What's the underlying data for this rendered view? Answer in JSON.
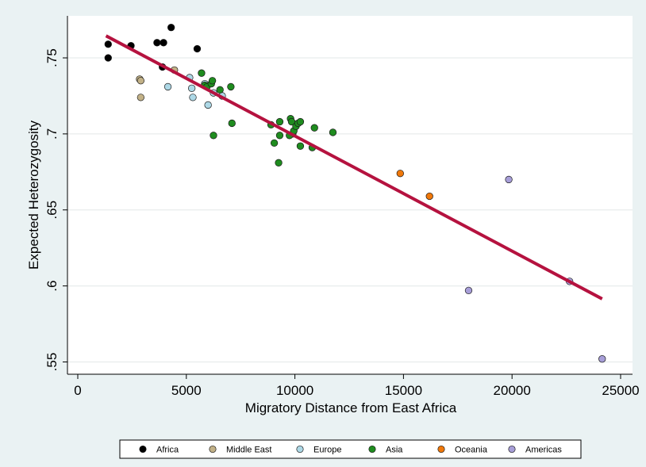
{
  "chart_data": {
    "type": "scatter",
    "xlabel": "Migratory Distance from East Africa",
    "ylabel": "Expected Heterozygosity",
    "xlim": [
      0,
      25000
    ],
    "ylim": [
      0.55,
      0.775
    ],
    "x_ticks": [
      0,
      5000,
      10000,
      15000,
      20000,
      25000
    ],
    "x_tick_labels": [
      "0",
      "5000",
      "10000",
      "15000",
      "20000",
      "25000"
    ],
    "y_ticks": [
      0.55,
      0.6,
      0.65,
      0.7,
      0.75
    ],
    "y_tick_labels": [
      ".55",
      ".6",
      ".65",
      ".7",
      ".75"
    ],
    "grid": true,
    "legend_position": "bottom",
    "fit_line": {
      "x": [
        1300,
        24150
      ],
      "y": [
        0.7645,
        0.5915
      ],
      "color": "#b5123f"
    },
    "series": [
      {
        "name": "Africa",
        "color": "#000000",
        "points": [
          [
            1400,
            0.759
          ],
          [
            1400,
            0.75
          ],
          [
            2450,
            0.758
          ],
          [
            3650,
            0.76
          ],
          [
            3950,
            0.76
          ],
          [
            4300,
            0.77
          ],
          [
            5500,
            0.756
          ],
          [
            3900,
            0.744
          ]
        ]
      },
      {
        "name": "Middle East",
        "color": "#c2b187",
        "points": [
          [
            2850,
            0.736
          ],
          [
            2900,
            0.735
          ],
          [
            2900,
            0.724
          ],
          [
            4450,
            0.742
          ]
        ]
      },
      {
        "name": "Europe",
        "color": "#add8e6",
        "points": [
          [
            4150,
            0.731
          ],
          [
            5150,
            0.737
          ],
          [
            5250,
            0.73
          ],
          [
            5300,
            0.724
          ],
          [
            6000,
            0.719
          ],
          [
            6250,
            0.727
          ],
          [
            6650,
            0.725
          ],
          [
            5850,
            0.733
          ]
        ]
      },
      {
        "name": "Asia",
        "color": "#1f8c1f",
        "points": [
          [
            5700,
            0.74
          ],
          [
            5850,
            0.732
          ],
          [
            5950,
            0.731
          ],
          [
            6150,
            0.733
          ],
          [
            6200,
            0.735
          ],
          [
            6550,
            0.729
          ],
          [
            7050,
            0.731
          ],
          [
            7100,
            0.707
          ],
          [
            6250,
            0.699
          ],
          [
            8900,
            0.706
          ],
          [
            9050,
            0.694
          ],
          [
            9250,
            0.681
          ],
          [
            9300,
            0.708
          ],
          [
            9300,
            0.699
          ],
          [
            9800,
            0.71
          ],
          [
            9850,
            0.708
          ],
          [
            9900,
            0.7
          ],
          [
            9950,
            0.702
          ],
          [
            10050,
            0.705
          ],
          [
            10150,
            0.707
          ],
          [
            10250,
            0.708
          ],
          [
            10250,
            0.692
          ],
          [
            10800,
            0.691
          ],
          [
            10900,
            0.704
          ],
          [
            11750,
            0.701
          ],
          [
            9750,
            0.699
          ]
        ]
      },
      {
        "name": "Oceania",
        "color": "#f0780a",
        "points": [
          [
            14850,
            0.674
          ],
          [
            16200,
            0.659
          ]
        ]
      },
      {
        "name": "Americas",
        "color": "#a79ed8",
        "points": [
          [
            19850,
            0.67
          ],
          [
            18000,
            0.597
          ],
          [
            22650,
            0.603
          ],
          [
            24150,
            0.552
          ]
        ]
      }
    ]
  }
}
